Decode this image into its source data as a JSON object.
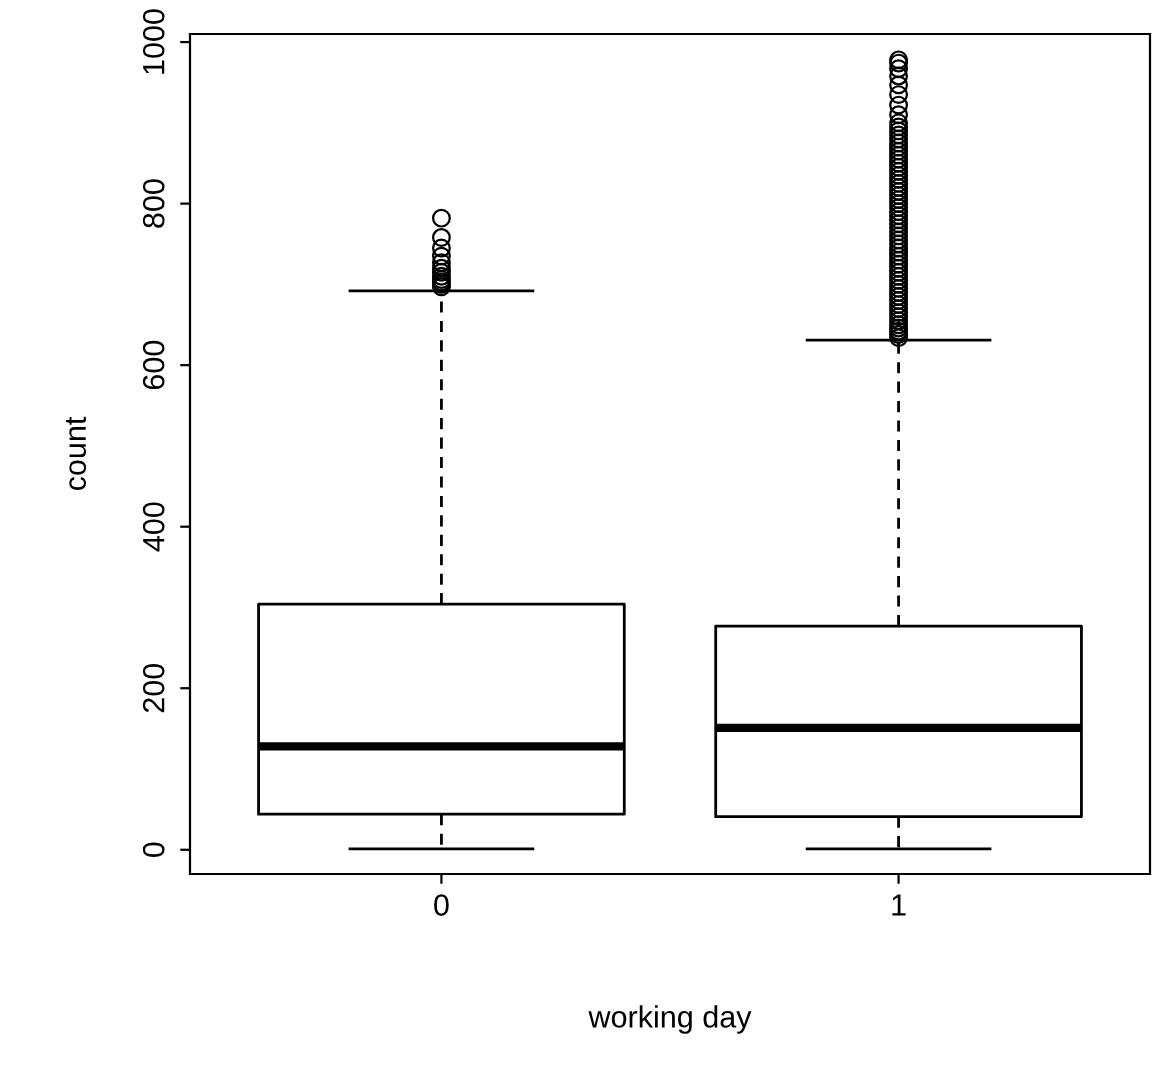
{
  "chart_data": {
    "type": "box",
    "xlabel": "working day",
    "ylabel": "count",
    "categories": [
      "0",
      "1"
    ],
    "boxes": [
      {
        "low": 1,
        "q1": 44,
        "median": 128,
        "q3": 304,
        "high": 692,
        "outliers": [
          697,
          700,
          703,
          706,
          710,
          715,
          720,
          727,
          735,
          745,
          758,
          782
        ]
      },
      {
        "low": 1,
        "q1": 41,
        "median": 151,
        "q3": 277,
        "high": 631,
        "outliers": [
          634,
          638,
          642,
          646,
          650,
          655,
          660,
          665,
          670,
          675,
          680,
          685,
          690,
          695,
          700,
          705,
          710,
          715,
          720,
          725,
          730,
          735,
          740,
          745,
          750,
          755,
          760,
          765,
          770,
          775,
          780,
          785,
          790,
          795,
          800,
          805,
          810,
          815,
          820,
          825,
          830,
          835,
          840,
          845,
          850,
          855,
          860,
          865,
          870,
          875,
          880,
          885,
          890,
          895,
          900,
          910,
          922,
          935,
          947,
          958,
          967,
          974,
          978
        ]
      }
    ],
    "ylim": [
      -30,
      1010
    ],
    "yticks": [
      0,
      200,
      400,
      600,
      800,
      1000
    ],
    "grid": false
  }
}
